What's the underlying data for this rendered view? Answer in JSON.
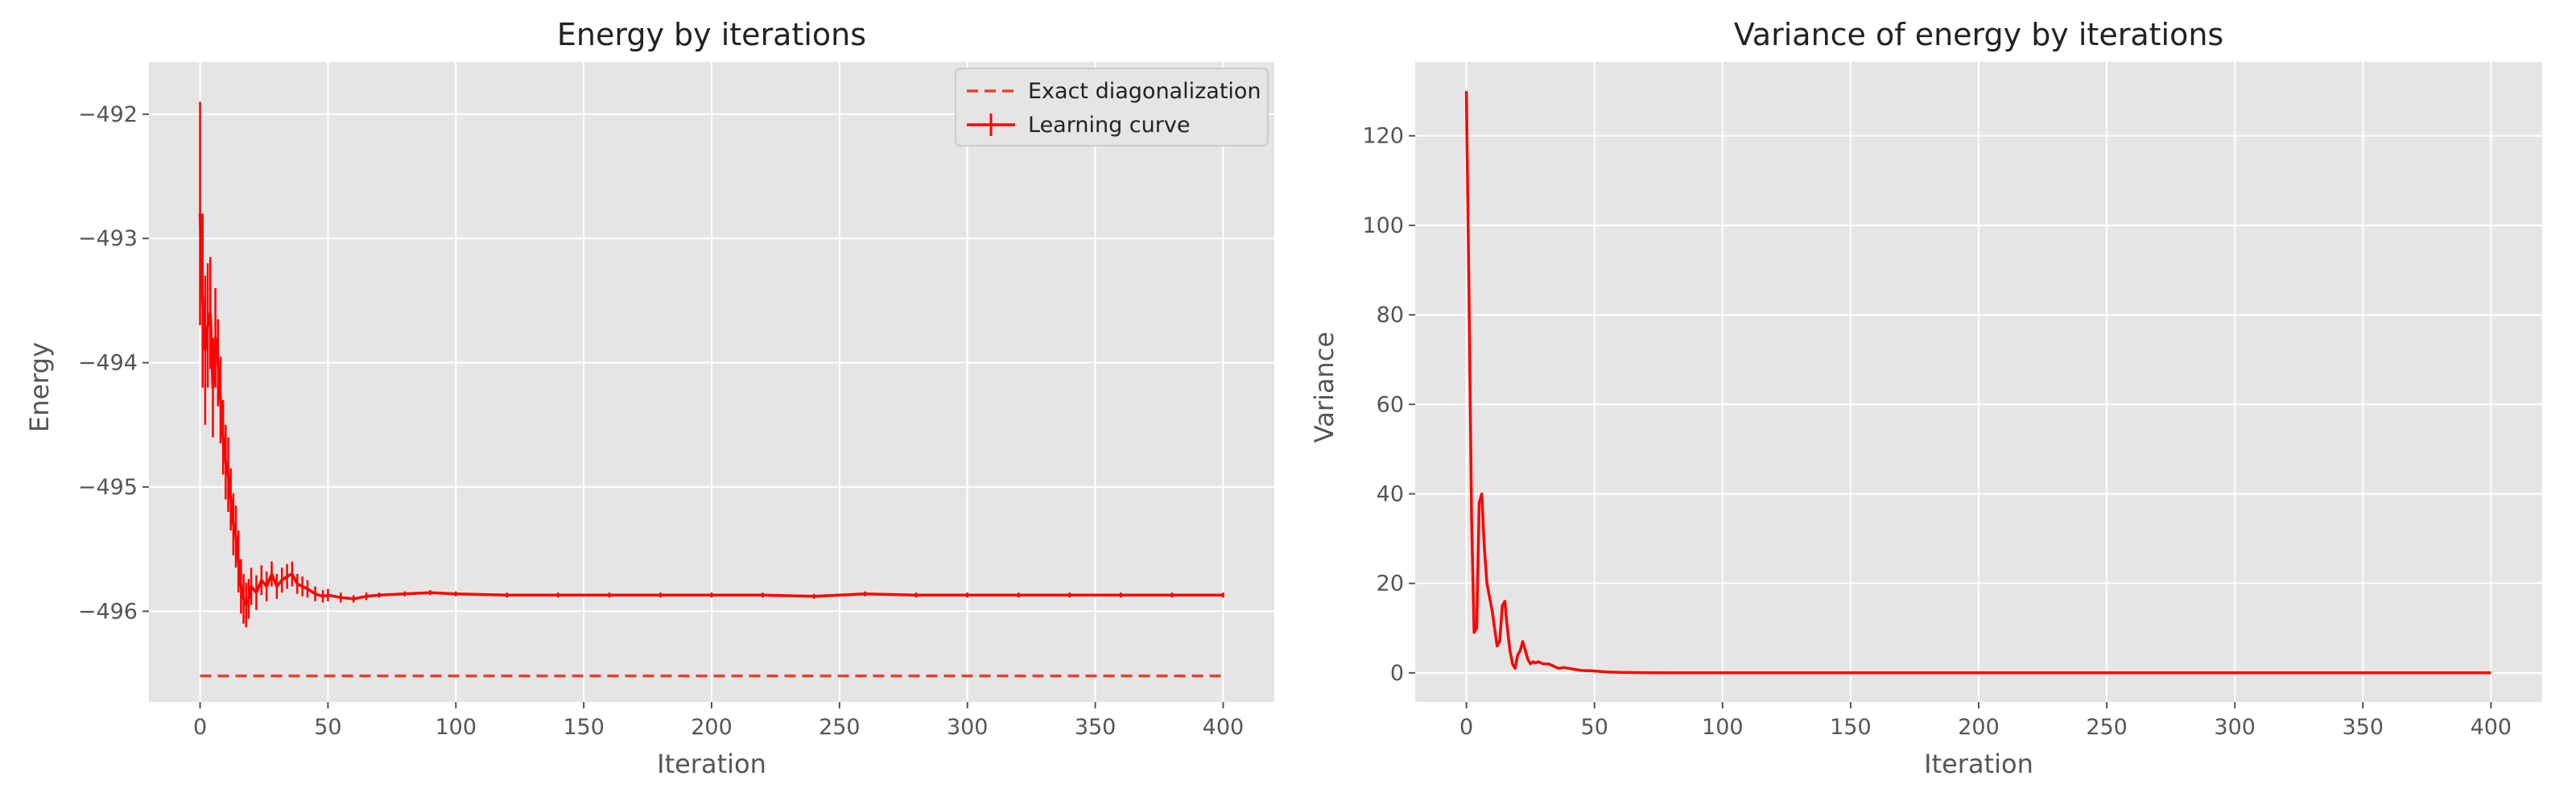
{
  "chart_data": [
    {
      "type": "line",
      "title": "Energy by iterations",
      "xlabel": "Iteration",
      "ylabel": "Energy",
      "xlim": [
        -20,
        420
      ],
      "ylim": [
        -496.73,
        -491.58
      ],
      "xticks": [
        0,
        50,
        100,
        150,
        200,
        250,
        300,
        350,
        400
      ],
      "yticks": [
        -496,
        -495,
        -494,
        -493,
        -492
      ],
      "ytick_labels": [
        "−496",
        "−495",
        "−494",
        "−493",
        "−492"
      ],
      "grid": true,
      "legend": {
        "position": "top-right",
        "entries": [
          "Exact diagonalization",
          "Learning curve"
        ]
      },
      "series": [
        {
          "name": "Exact diagonalization",
          "style": "dashed",
          "color": "#e8412b",
          "x": [
            0,
            400
          ],
          "y": [
            -496.52,
            -496.52
          ]
        },
        {
          "name": "Learning curve",
          "style": "solid-errorbar",
          "color": "#ff0000",
          "x": [
            0,
            1,
            2,
            3,
            4,
            5,
            6,
            7,
            8,
            9,
            10,
            11,
            12,
            13,
            14,
            15,
            16,
            17,
            18,
            19,
            20,
            22,
            24,
            26,
            28,
            30,
            32,
            34,
            36,
            38,
            40,
            42,
            45,
            48,
            50,
            55,
            60,
            65,
            70,
            80,
            90,
            100,
            120,
            140,
            160,
            180,
            200,
            220,
            240,
            260,
            280,
            300,
            320,
            340,
            360,
            380,
            400
          ],
          "y": [
            -492.8,
            -493.5,
            -493.9,
            -493.7,
            -493.6,
            -494.2,
            -493.8,
            -494.0,
            -494.3,
            -494.6,
            -494.8,
            -494.9,
            -495.1,
            -495.3,
            -495.4,
            -495.6,
            -495.8,
            -495.9,
            -495.95,
            -495.9,
            -495.8,
            -495.85,
            -495.75,
            -495.8,
            -495.7,
            -495.8,
            -495.75,
            -495.72,
            -495.7,
            -495.78,
            -495.8,
            -495.82,
            -495.86,
            -495.88,
            -495.87,
            -495.89,
            -495.9,
            -495.88,
            -495.87,
            -495.86,
            -495.85,
            -495.86,
            -495.87,
            -495.87,
            -495.87,
            -495.87,
            -495.87,
            -495.87,
            -495.88,
            -495.86,
            -495.87,
            -495.87,
            -495.87,
            -495.87,
            -495.87,
            -495.87,
            -495.87
          ],
          "err": [
            0.9,
            0.7,
            0.6,
            0.5,
            0.45,
            0.4,
            0.4,
            0.35,
            0.35,
            0.3,
            0.3,
            0.3,
            0.25,
            0.25,
            0.25,
            0.25,
            0.22,
            0.2,
            0.18,
            0.16,
            0.15,
            0.14,
            0.12,
            0.12,
            0.1,
            0.1,
            0.1,
            0.1,
            0.1,
            0.08,
            0.08,
            0.07,
            0.06,
            0.05,
            0.05,
            0.04,
            0.03,
            0.03,
            0.02,
            0.02,
            0.02,
            0.02,
            0.02,
            0.02,
            0.02,
            0.02,
            0.02,
            0.02,
            0.02,
            0.02,
            0.02,
            0.02,
            0.02,
            0.02,
            0.02,
            0.02,
            0.02
          ]
        }
      ]
    },
    {
      "type": "line",
      "title": "Variance of energy by iterations",
      "xlabel": "Iteration",
      "ylabel": "Variance",
      "xlim": [
        -20,
        420
      ],
      "ylim": [
        -6.5,
        136.5
      ],
      "xticks": [
        0,
        50,
        100,
        150,
        200,
        250,
        300,
        350,
        400
      ],
      "yticks": [
        0,
        20,
        40,
        60,
        80,
        100,
        120
      ],
      "ytick_labels": [
        "0",
        "20",
        "40",
        "60",
        "80",
        "100",
        "120"
      ],
      "grid": true,
      "series": [
        {
          "name": "Variance",
          "color": "#ff0000",
          "x": [
            0,
            1,
            2,
            3,
            4,
            5,
            6,
            7,
            8,
            9,
            10,
            11,
            12,
            13,
            14,
            15,
            16,
            17,
            18,
            19,
            20,
            21,
            22,
            23,
            24,
            25,
            26,
            27,
            28,
            30,
            32,
            34,
            36,
            38,
            40,
            42,
            44,
            46,
            48,
            50,
            55,
            60,
            70,
            80,
            100,
            150,
            200,
            250,
            300,
            350,
            400
          ],
          "y": [
            130,
            85,
            35,
            9,
            10,
            38,
            40,
            28,
            20,
            17,
            14,
            10,
            6,
            7,
            15,
            16,
            10,
            5,
            2,
            1,
            4,
            5,
            7,
            5,
            3,
            2,
            2.5,
            2.2,
            2.5,
            2,
            2,
            1.5,
            1,
            1.2,
            1,
            0.8,
            0.6,
            0.5,
            0.5,
            0.4,
            0.2,
            0.1,
            0.05,
            0.02,
            0.02,
            0.01,
            0.01,
            0.01,
            0.01,
            0.01,
            0.01
          ]
        }
      ]
    }
  ]
}
